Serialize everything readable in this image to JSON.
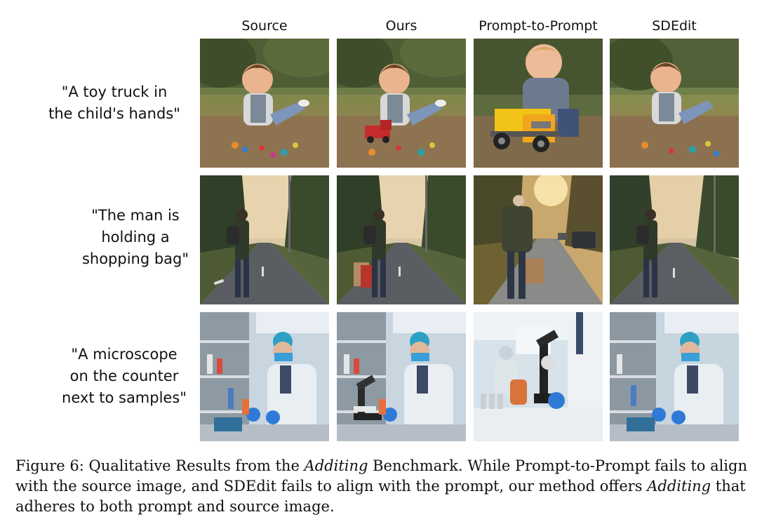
{
  "figure": {
    "columns": [
      "Source",
      "Ours",
      "Prompt-to-Prompt",
      "SDEdit"
    ],
    "rows": [
      {
        "prompt_lines": [
          "\"A toy truck in",
          "the child's hands\""
        ]
      },
      {
        "prompt_lines": [
          "\"The man is",
          "holding a",
          "shopping bag\""
        ]
      },
      {
        "prompt_lines": [
          "\"A microscope",
          "on the counter",
          "next to samples\""
        ]
      }
    ]
  },
  "caption": {
    "prefix": "Figure 6: Qualitative Results from the ",
    "italic1": "Additing",
    "middle": " Benchmark. While Prompt-to-Prompt fails to align with the source image, and SDEdit fails to align with the prompt, our method offers ",
    "italic2": "Additing",
    "suffix": " that adheres to both prompt and source image."
  }
}
